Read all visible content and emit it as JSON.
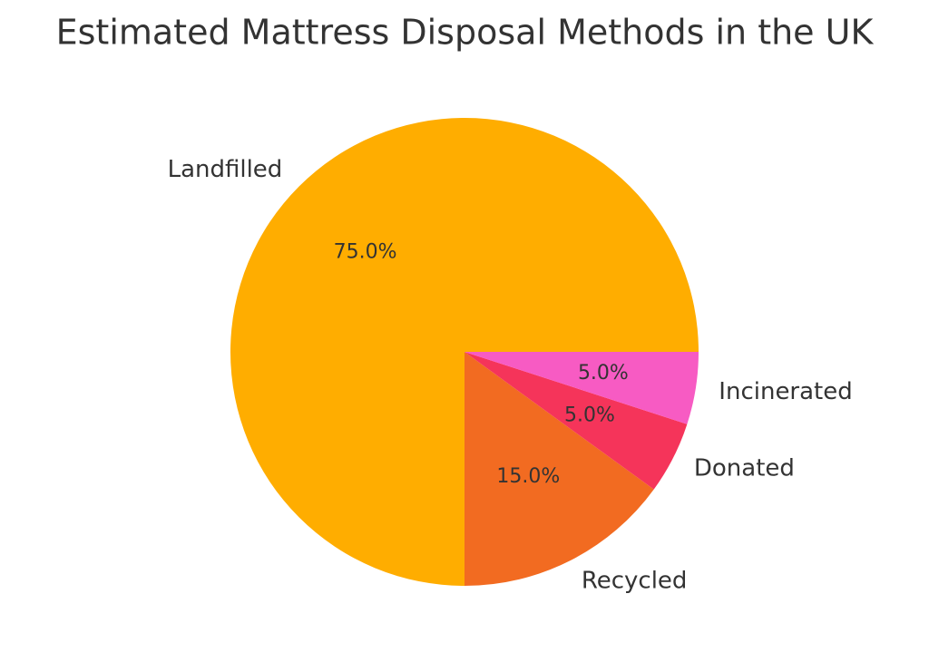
{
  "chart_data": {
    "type": "pie",
    "title": "Estimated Mattress Disposal Methods in the UK",
    "categories": [
      "Landfilled",
      "Recycled",
      "Donated",
      "Incinerated"
    ],
    "values": [
      75,
      15,
      5,
      5
    ],
    "value_labels": [
      "75.0%",
      "15.0%",
      "5.0%",
      "5.0%"
    ],
    "colors": [
      "#ffad00",
      "#f26b21",
      "#f5345a",
      "#f75bc3"
    ]
  }
}
